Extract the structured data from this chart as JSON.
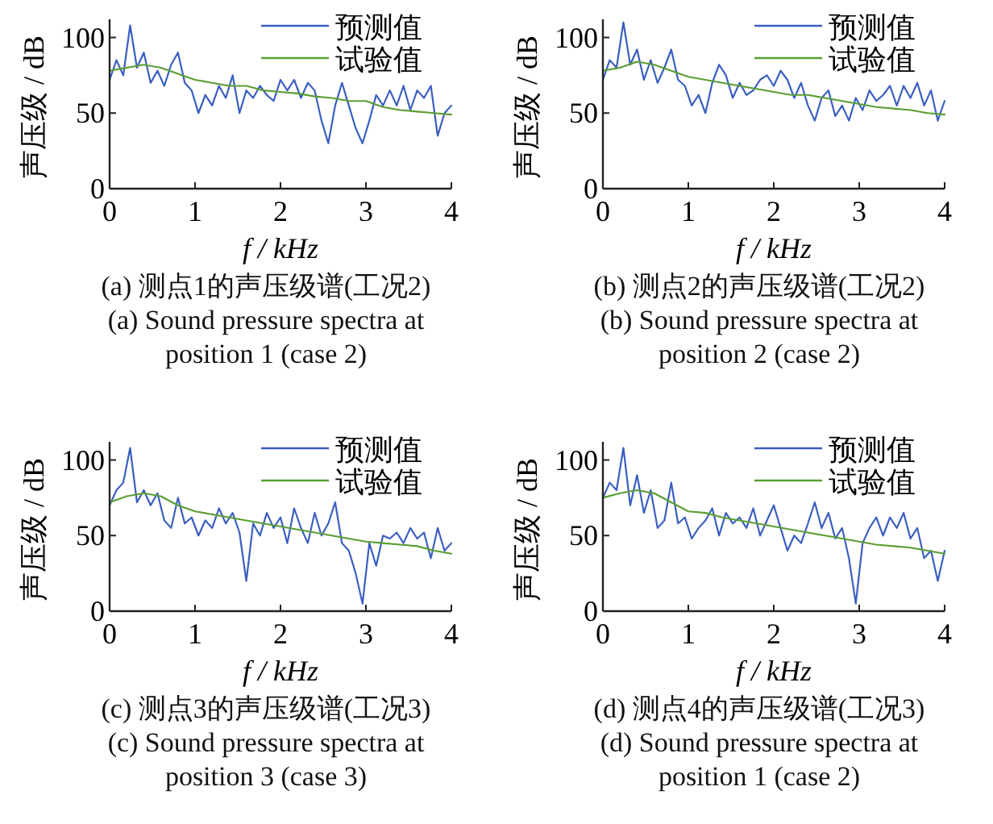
{
  "chart_data": [
    {
      "type": "line",
      "title": "(a)  测点1的声压级谱(工况2)",
      "subtitle": "(a)  Sound pressure spectra at position 1 (case 2)",
      "xlabel": "f / kHz",
      "ylabel": "声压级 / dB",
      "xlim": [
        0,
        4
      ],
      "ylim": [
        0,
        112
      ],
      "xticks": [
        0,
        1,
        2,
        3,
        4
      ],
      "yticks": [
        0,
        50,
        100
      ],
      "grid": false,
      "legend": "top right",
      "marker": "none",
      "line_style": "solid",
      "series": [
        {
          "name": "预测值",
          "color": "#3b5fc0",
          "x": [
            0,
            0.08,
            0.16,
            0.24,
            0.32,
            0.4,
            0.48,
            0.56,
            0.64,
            0.72,
            0.8,
            0.88,
            0.96,
            1.04,
            1.12,
            1.2,
            1.28,
            1.36,
            1.44,
            1.52,
            1.6,
            1.68,
            1.76,
            1.84,
            1.92,
            2.0,
            2.08,
            2.16,
            2.24,
            2.32,
            2.4,
            2.48,
            2.56,
            2.64,
            2.72,
            2.8,
            2.88,
            2.96,
            3.04,
            3.12,
            3.2,
            3.28,
            3.36,
            3.44,
            3.52,
            3.6,
            3.68,
            3.76,
            3.84,
            3.92,
            4.0
          ],
          "values": [
            72,
            85,
            75,
            108,
            80,
            90,
            70,
            78,
            68,
            82,
            90,
            70,
            65,
            50,
            62,
            55,
            68,
            60,
            75,
            50,
            65,
            60,
            68,
            62,
            58,
            72,
            65,
            72,
            60,
            70,
            65,
            45,
            30,
            55,
            70,
            55,
            40,
            30,
            45,
            62,
            55,
            65,
            55,
            68,
            52,
            65,
            60,
            68,
            35,
            50,
            55
          ]
        },
        {
          "name": "试验值",
          "color": "#5a9e32",
          "x": [
            0,
            0.2,
            0.4,
            0.6,
            0.8,
            1.0,
            1.2,
            1.4,
            1.6,
            1.8,
            2.0,
            2.2,
            2.4,
            2.6,
            2.8,
            3.0,
            3.2,
            3.4,
            3.6,
            3.8,
            4.0
          ],
          "values": [
            78,
            80,
            82,
            80,
            76,
            72,
            70,
            68,
            68,
            65,
            64,
            63,
            61,
            60,
            58,
            58,
            54,
            52,
            51,
            50,
            49
          ]
        }
      ]
    },
    {
      "type": "line",
      "title": "(b)  测点2的声压级谱(工况2)",
      "subtitle": "(b)  Sound pressure spectra at position 2 (case 2)",
      "xlabel": "f / kHz",
      "ylabel": "声压级 / dB",
      "xlim": [
        0,
        4
      ],
      "ylim": [
        0,
        112
      ],
      "xticks": [
        0,
        1,
        2,
        3,
        4
      ],
      "yticks": [
        0,
        50,
        100
      ],
      "grid": false,
      "legend": "top right",
      "marker": "none",
      "line_style": "solid",
      "series": [
        {
          "name": "预测值",
          "color": "#3b5fc0",
          "x": [
            0,
            0.08,
            0.16,
            0.24,
            0.32,
            0.4,
            0.48,
            0.56,
            0.64,
            0.72,
            0.8,
            0.88,
            0.96,
            1.04,
            1.12,
            1.2,
            1.28,
            1.36,
            1.44,
            1.52,
            1.6,
            1.68,
            1.76,
            1.84,
            1.92,
            2.0,
            2.08,
            2.16,
            2.24,
            2.32,
            2.4,
            2.48,
            2.56,
            2.64,
            2.72,
            2.8,
            2.88,
            2.96,
            3.04,
            3.12,
            3.2,
            3.28,
            3.36,
            3.44,
            3.52,
            3.6,
            3.68,
            3.76,
            3.84,
            3.92,
            4.0
          ],
          "values": [
            72,
            85,
            80,
            110,
            82,
            92,
            72,
            85,
            70,
            80,
            92,
            72,
            68,
            55,
            62,
            50,
            70,
            82,
            75,
            60,
            70,
            62,
            65,
            72,
            75,
            68,
            78,
            72,
            60,
            70,
            55,
            45,
            60,
            65,
            48,
            55,
            45,
            60,
            52,
            65,
            58,
            62,
            68,
            55,
            68,
            60,
            70,
            55,
            65,
            45,
            58
          ]
        },
        {
          "name": "试验值",
          "color": "#5a9e32",
          "x": [
            0,
            0.2,
            0.4,
            0.6,
            0.8,
            1.0,
            1.2,
            1.4,
            1.6,
            1.8,
            2.0,
            2.2,
            2.4,
            2.6,
            2.8,
            3.0,
            3.2,
            3.4,
            3.6,
            3.8,
            4.0
          ],
          "values": [
            78,
            80,
            84,
            82,
            78,
            74,
            72,
            70,
            68,
            66,
            64,
            62,
            62,
            60,
            58,
            56,
            54,
            53,
            52,
            50,
            49
          ]
        }
      ]
    },
    {
      "type": "line",
      "title": "(c)  测点3的声压级谱(工况3)",
      "subtitle": "(c)  Sound pressure spectra at position 3 (case 3)",
      "xlabel": "f / kHz",
      "ylabel": "声压级 / dB",
      "xlim": [
        0,
        4
      ],
      "ylim": [
        0,
        112
      ],
      "xticks": [
        0,
        1,
        2,
        3,
        4
      ],
      "yticks": [
        0,
        50,
        100
      ],
      "grid": false,
      "legend": "top right",
      "marker": "none",
      "line_style": "solid",
      "series": [
        {
          "name": "预测值",
          "color": "#3b5fc0",
          "x": [
            0,
            0.08,
            0.16,
            0.24,
            0.32,
            0.4,
            0.48,
            0.56,
            0.64,
            0.72,
            0.8,
            0.88,
            0.96,
            1.04,
            1.12,
            1.2,
            1.28,
            1.36,
            1.44,
            1.52,
            1.6,
            1.68,
            1.76,
            1.84,
            1.92,
            2.0,
            2.08,
            2.16,
            2.24,
            2.32,
            2.4,
            2.48,
            2.56,
            2.64,
            2.72,
            2.8,
            2.88,
            2.96,
            3.04,
            3.12,
            3.2,
            3.28,
            3.36,
            3.44,
            3.52,
            3.6,
            3.68,
            3.76,
            3.84,
            3.92,
            4.0
          ],
          "values": [
            70,
            80,
            85,
            108,
            72,
            80,
            70,
            78,
            60,
            55,
            75,
            58,
            62,
            50,
            60,
            55,
            68,
            58,
            65,
            52,
            20,
            58,
            50,
            65,
            55,
            62,
            45,
            68,
            55,
            45,
            65,
            50,
            58,
            72,
            45,
            40,
            25,
            5,
            45,
            30,
            50,
            48,
            52,
            45,
            55,
            48,
            52,
            35,
            55,
            40,
            45
          ]
        },
        {
          "name": "试验值",
          "color": "#5a9e32",
          "x": [
            0,
            0.2,
            0.4,
            0.6,
            0.8,
            1.0,
            1.2,
            1.4,
            1.6,
            1.8,
            2.0,
            2.2,
            2.4,
            2.6,
            2.8,
            3.0,
            3.2,
            3.4,
            3.6,
            3.8,
            4.0
          ],
          "values": [
            72,
            76,
            78,
            76,
            70,
            66,
            64,
            62,
            60,
            58,
            56,
            54,
            52,
            50,
            48,
            46,
            45,
            44,
            43,
            40,
            38
          ]
        }
      ]
    },
    {
      "type": "line",
      "title": "(d)  测点4的声压级谱(工况3)",
      "subtitle": "(d)  Sound pressure spectra at position 1 (case 2)",
      "xlabel": "f / kHz",
      "ylabel": "声压级 / dB",
      "xlim": [
        0,
        4
      ],
      "ylim": [
        0,
        112
      ],
      "xticks": [
        0,
        1,
        2,
        3,
        4
      ],
      "yticks": [
        0,
        50,
        100
      ],
      "grid": false,
      "legend": "top right",
      "marker": "none",
      "line_style": "solid",
      "series": [
        {
          "name": "预测值",
          "color": "#3b5fc0",
          "x": [
            0,
            0.08,
            0.16,
            0.24,
            0.32,
            0.4,
            0.48,
            0.56,
            0.64,
            0.72,
            0.8,
            0.88,
            0.96,
            1.04,
            1.12,
            1.2,
            1.28,
            1.36,
            1.44,
            1.52,
            1.6,
            1.68,
            1.76,
            1.84,
            1.92,
            2.0,
            2.08,
            2.16,
            2.24,
            2.32,
            2.4,
            2.48,
            2.56,
            2.64,
            2.72,
            2.8,
            2.88,
            2.96,
            3.04,
            3.12,
            3.2,
            3.28,
            3.36,
            3.44,
            3.52,
            3.6,
            3.68,
            3.76,
            3.84,
            3.92,
            4.0
          ],
          "values": [
            75,
            85,
            80,
            108,
            70,
            90,
            65,
            80,
            55,
            60,
            85,
            58,
            62,
            48,
            55,
            60,
            68,
            50,
            65,
            58,
            62,
            55,
            68,
            50,
            60,
            70,
            55,
            40,
            50,
            45,
            58,
            72,
            55,
            65,
            48,
            55,
            35,
            5,
            45,
            55,
            62,
            50,
            62,
            55,
            65,
            48,
            55,
            35,
            40,
            20,
            40
          ]
        },
        {
          "name": "试验值",
          "color": "#5a9e32",
          "x": [
            0,
            0.2,
            0.4,
            0.6,
            0.8,
            1.0,
            1.2,
            1.4,
            1.6,
            1.8,
            2.0,
            2.2,
            2.4,
            2.6,
            2.8,
            3.0,
            3.2,
            3.4,
            3.6,
            3.8,
            4.0
          ],
          "values": [
            75,
            78,
            80,
            78,
            72,
            66,
            65,
            62,
            60,
            58,
            56,
            54,
            52,
            50,
            48,
            46,
            44,
            43,
            42,
            40,
            38
          ]
        }
      ]
    }
  ]
}
